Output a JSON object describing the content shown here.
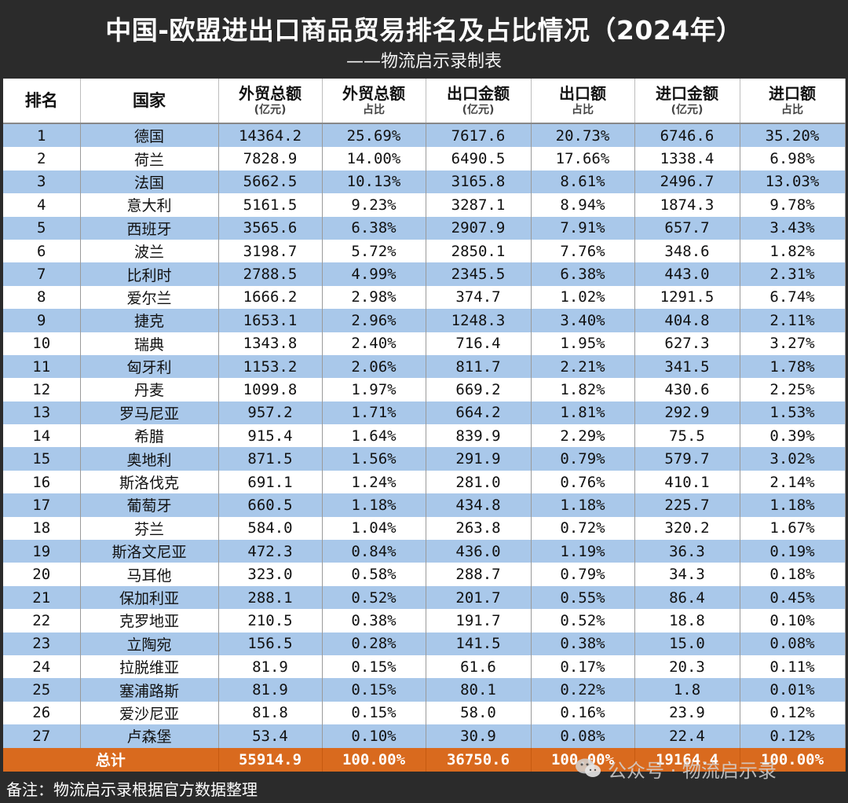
{
  "title": "中国-欧盟进出口商品贸易排名及占比情况（2024年）",
  "subtitle": "——物流启示录制表",
  "headers": [
    {
      "line1": "排名",
      "line2": ""
    },
    {
      "line1": "国家",
      "line2": ""
    },
    {
      "line1": "外贸总额",
      "line2": "(亿元)"
    },
    {
      "line1": "外贸总额",
      "line2": "占比"
    },
    {
      "line1": "出口金额",
      "line2": "(亿元)"
    },
    {
      "line1": "出口额",
      "line2": "占比"
    },
    {
      "line1": "进口金额",
      "line2": "(亿元)"
    },
    {
      "line1": "进口额",
      "line2": "占比"
    }
  ],
  "rows": [
    {
      "rank": "1",
      "country": "德国",
      "trade": "14364.2",
      "trade_share": "25.69%",
      "export": "7617.6",
      "export_share": "20.73%",
      "import": "6746.6",
      "import_share": "35.20%"
    },
    {
      "rank": "2",
      "country": "荷兰",
      "trade": "7828.9",
      "trade_share": "14.00%",
      "export": "6490.5",
      "export_share": "17.66%",
      "import": "1338.4",
      "import_share": "6.98%"
    },
    {
      "rank": "3",
      "country": "法国",
      "trade": "5662.5",
      "trade_share": "10.13%",
      "export": "3165.8",
      "export_share": "8.61%",
      "import": "2496.7",
      "import_share": "13.03%"
    },
    {
      "rank": "4",
      "country": "意大利",
      "trade": "5161.5",
      "trade_share": "9.23%",
      "export": "3287.1",
      "export_share": "8.94%",
      "import": "1874.3",
      "import_share": "9.78%"
    },
    {
      "rank": "5",
      "country": "西班牙",
      "trade": "3565.6",
      "trade_share": "6.38%",
      "export": "2907.9",
      "export_share": "7.91%",
      "import": "657.7",
      "import_share": "3.43%"
    },
    {
      "rank": "6",
      "country": "波兰",
      "trade": "3198.7",
      "trade_share": "5.72%",
      "export": "2850.1",
      "export_share": "7.76%",
      "import": "348.6",
      "import_share": "1.82%"
    },
    {
      "rank": "7",
      "country": "比利时",
      "trade": "2788.5",
      "trade_share": "4.99%",
      "export": "2345.5",
      "export_share": "6.38%",
      "import": "443.0",
      "import_share": "2.31%"
    },
    {
      "rank": "8",
      "country": "爱尔兰",
      "trade": "1666.2",
      "trade_share": "2.98%",
      "export": "374.7",
      "export_share": "1.02%",
      "import": "1291.5",
      "import_share": "6.74%"
    },
    {
      "rank": "9",
      "country": "捷克",
      "trade": "1653.1",
      "trade_share": "2.96%",
      "export": "1248.3",
      "export_share": "3.40%",
      "import": "404.8",
      "import_share": "2.11%"
    },
    {
      "rank": "10",
      "country": "瑞典",
      "trade": "1343.8",
      "trade_share": "2.40%",
      "export": "716.4",
      "export_share": "1.95%",
      "import": "627.3",
      "import_share": "3.27%"
    },
    {
      "rank": "11",
      "country": "匈牙利",
      "trade": "1153.2",
      "trade_share": "2.06%",
      "export": "811.7",
      "export_share": "2.21%",
      "import": "341.5",
      "import_share": "1.78%"
    },
    {
      "rank": "12",
      "country": "丹麦",
      "trade": "1099.8",
      "trade_share": "1.97%",
      "export": "669.2",
      "export_share": "1.82%",
      "import": "430.6",
      "import_share": "2.25%"
    },
    {
      "rank": "13",
      "country": "罗马尼亚",
      "trade": "957.2",
      "trade_share": "1.71%",
      "export": "664.2",
      "export_share": "1.81%",
      "import": "292.9",
      "import_share": "1.53%"
    },
    {
      "rank": "14",
      "country": "希腊",
      "trade": "915.4",
      "trade_share": "1.64%",
      "export": "839.9",
      "export_share": "2.29%",
      "import": "75.5",
      "import_share": "0.39%"
    },
    {
      "rank": "15",
      "country": "奥地利",
      "trade": "871.5",
      "trade_share": "1.56%",
      "export": "291.9",
      "export_share": "0.79%",
      "import": "579.7",
      "import_share": "3.02%"
    },
    {
      "rank": "16",
      "country": "斯洛伐克",
      "trade": "691.1",
      "trade_share": "1.24%",
      "export": "281.0",
      "export_share": "0.76%",
      "import": "410.1",
      "import_share": "2.14%"
    },
    {
      "rank": "17",
      "country": "葡萄牙",
      "trade": "660.5",
      "trade_share": "1.18%",
      "export": "434.8",
      "export_share": "1.18%",
      "import": "225.7",
      "import_share": "1.18%"
    },
    {
      "rank": "18",
      "country": "芬兰",
      "trade": "584.0",
      "trade_share": "1.04%",
      "export": "263.8",
      "export_share": "0.72%",
      "import": "320.2",
      "import_share": "1.67%"
    },
    {
      "rank": "19",
      "country": "斯洛文尼亚",
      "trade": "472.3",
      "trade_share": "0.84%",
      "export": "436.0",
      "export_share": "1.19%",
      "import": "36.3",
      "import_share": "0.19%"
    },
    {
      "rank": "20",
      "country": "马耳他",
      "trade": "323.0",
      "trade_share": "0.58%",
      "export": "288.7",
      "export_share": "0.79%",
      "import": "34.3",
      "import_share": "0.18%"
    },
    {
      "rank": "21",
      "country": "保加利亚",
      "trade": "288.1",
      "trade_share": "0.52%",
      "export": "201.7",
      "export_share": "0.55%",
      "import": "86.4",
      "import_share": "0.45%"
    },
    {
      "rank": "22",
      "country": "克罗地亚",
      "trade": "210.5",
      "trade_share": "0.38%",
      "export": "191.7",
      "export_share": "0.52%",
      "import": "18.8",
      "import_share": "0.10%"
    },
    {
      "rank": "23",
      "country": "立陶宛",
      "trade": "156.5",
      "trade_share": "0.28%",
      "export": "141.5",
      "export_share": "0.38%",
      "import": "15.0",
      "import_share": "0.08%"
    },
    {
      "rank": "24",
      "country": "拉脱维亚",
      "trade": "81.9",
      "trade_share": "0.15%",
      "export": "61.6",
      "export_share": "0.17%",
      "import": "20.3",
      "import_share": "0.11%"
    },
    {
      "rank": "25",
      "country": "塞浦路斯",
      "trade": "81.9",
      "trade_share": "0.15%",
      "export": "80.1",
      "export_share": "0.22%",
      "import": "1.8",
      "import_share": "0.01%"
    },
    {
      "rank": "26",
      "country": "爱沙尼亚",
      "trade": "81.8",
      "trade_share": "0.15%",
      "export": "58.0",
      "export_share": "0.16%",
      "import": "23.9",
      "import_share": "0.12%"
    },
    {
      "rank": "27",
      "country": "卢森堡",
      "trade": "53.4",
      "trade_share": "0.10%",
      "export": "30.9",
      "export_share": "0.08%",
      "import": "22.4",
      "import_share": "0.12%"
    }
  ],
  "total": {
    "label": "总计",
    "trade": "55914.9",
    "trade_share": "100.00%",
    "export": "36750.6",
    "export_share": "100.00%",
    "import": "19164.4",
    "import_share": "100.00%"
  },
  "footer_note": "备注：物流启示录根据官方数据整理",
  "watermark": "公众号 · 物流启示录"
}
